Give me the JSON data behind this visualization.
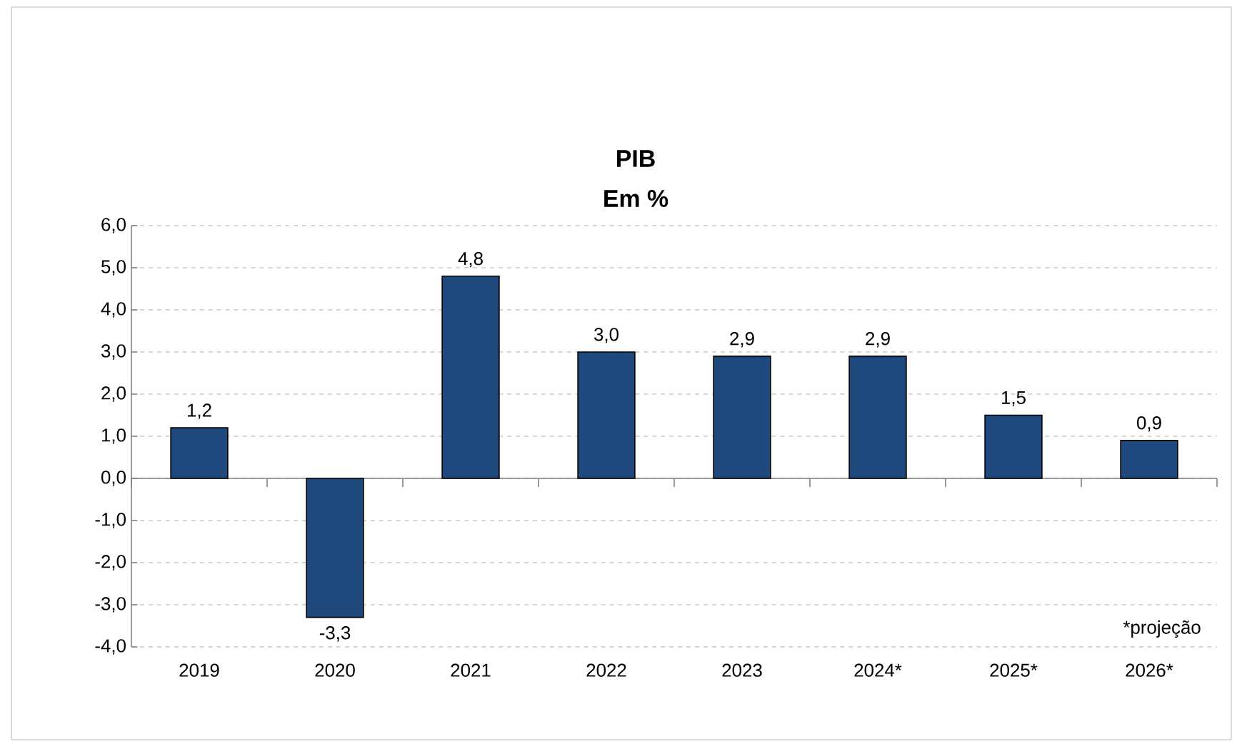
{
  "chart_data": {
    "type": "bar",
    "title": "PIB",
    "subtitle": "Em %",
    "categories": [
      "2019",
      "2020",
      "2021",
      "2022",
      "2023",
      "2024*",
      "2025*",
      "2026*"
    ],
    "values": [
      1.2,
      -3.3,
      4.8,
      3.0,
      2.9,
      2.9,
      1.5,
      0.9
    ],
    "value_labels": [
      "1,2",
      "-3,3",
      "4,8",
      "3,0",
      "2,9",
      "2,9",
      "1,5",
      "0,9"
    ],
    "color": "#1f497d",
    "ylim": [
      -4,
      6
    ],
    "yticks": [
      {
        "value": -4,
        "label": "-4,0"
      },
      {
        "value": -3,
        "label": "-3,0"
      },
      {
        "value": -2,
        "label": "-2,0"
      },
      {
        "value": -1,
        "label": "-1,0"
      },
      {
        "value": 0,
        "label": "0,0"
      },
      {
        "value": 1,
        "label": "1,0"
      },
      {
        "value": 2,
        "label": "2,0"
      },
      {
        "value": 3,
        "label": "3,0"
      },
      {
        "value": 4,
        "label": "4,0"
      },
      {
        "value": 5,
        "label": "5,0"
      },
      {
        "value": 6,
        "label": "6,0"
      }
    ],
    "grid": "y",
    "annotations": [
      "*projeção"
    ]
  }
}
